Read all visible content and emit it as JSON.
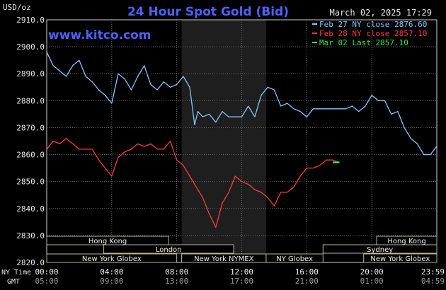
{
  "header": {
    "title": "24 Hour Spot Gold (Bid)",
    "timestamp": "March 02, 2025 17:29",
    "unit": "USD/oz",
    "watermark": "www.kitco.com"
  },
  "legend": [
    {
      "label": "Feb 27 NY close 2876.60",
      "color": "#7ec8ff"
    },
    {
      "label": "Feb 28 NY close 2857.10",
      "color": "#ff3b3b"
    },
    {
      "label": "Mar 02 Last 2857.10",
      "color": "#33ee33"
    }
  ],
  "sessions": {
    "row1": [
      {
        "name": "Hong Kong",
        "start": 0,
        "end": 7.5
      },
      {
        "name": "Hong Kong",
        "start": 20.3,
        "end": 24
      }
    ],
    "row2": [
      {
        "name": "London",
        "start": 3.5,
        "end": 11.5
      },
      {
        "name": "Sydney",
        "start": 17.0,
        "end": 24
      }
    ],
    "row3": [
      {
        "name": "New York Globex",
        "start": 0,
        "end": 8.0
      },
      {
        "name": "New York NYMEX",
        "start": 8.3,
        "end": 13.5
      },
      {
        "name": "NY Globex",
        "start": 13.5,
        "end": 17.0
      },
      {
        "name": "New York Globex",
        "start": 19.5,
        "end": 24
      }
    ]
  },
  "time_rows": {
    "ny_label": "NY Time",
    "gmt_label": "GMT",
    "ny": [
      "00:00",
      "04:00",
      "08:00",
      "12:00",
      "16:00",
      "20:00",
      "23:59"
    ],
    "gmt": [
      "05:00",
      "09:00",
      "13:00",
      "17:00",
      "21:00",
      "01:00",
      "04:59"
    ]
  },
  "chart_data": {
    "type": "line",
    "title": "24 Hour Spot Gold (Bid)",
    "ylabel": "USD/oz",
    "xlabel": "NY Time",
    "ylim": [
      2820,
      2910
    ],
    "xlim": [
      0,
      24
    ],
    "y_ticks": [
      "2820.0",
      "2830.0",
      "2840.0",
      "2850.0",
      "2860.0",
      "2870.0",
      "2880.0",
      "2890.0",
      "2900.0",
      "2910.0"
    ],
    "grid": true,
    "shaded_region": [
      8.3,
      13.5
    ],
    "series": [
      {
        "name": "Feb 27 NY close 2876.60",
        "color": "#7ec8ff",
        "x": [
          0.0,
          0.4,
          0.8,
          1.2,
          1.6,
          2.0,
          2.4,
          2.8,
          3.2,
          3.6,
          4.0,
          4.4,
          4.8,
          5.2,
          5.6,
          6.0,
          6.4,
          6.8,
          7.2,
          7.6,
          8.0,
          8.4,
          8.8,
          9.1,
          9.3,
          9.6,
          10.0,
          10.4,
          10.8,
          11.2,
          11.6,
          12.0,
          12.4,
          12.8,
          13.2,
          13.6,
          14.0,
          14.4,
          14.8,
          15.2,
          15.6,
          16.0,
          16.4,
          16.8,
          17.2,
          17.6,
          18.0,
          18.4,
          18.8,
          19.2,
          19.6,
          20.0,
          20.4,
          20.8,
          21.2,
          21.6,
          22.0,
          22.4,
          22.8,
          23.2,
          23.6,
          23.99
        ],
        "y": [
          2898,
          2893,
          2891,
          2889,
          2893,
          2895,
          2889,
          2887,
          2884,
          2882,
          2879,
          2890,
          2888,
          2884,
          2889,
          2893,
          2886,
          2884,
          2887,
          2885,
          2886,
          2889,
          2885,
          2871,
          2876,
          2874,
          2875,
          2872,
          2876,
          2874,
          2874,
          2874,
          2878,
          2874,
          2882,
          2885,
          2884,
          2878,
          2879,
          2877,
          2876,
          2874,
          2877,
          2877,
          2877,
          2877,
          2877,
          2877,
          2878,
          2876,
          2878,
          2882,
          2880,
          2880,
          2875,
          2876,
          2870,
          2866,
          2864,
          2860,
          2860,
          2863
        ]
      },
      {
        "name": "Feb 28 NY close 2857.10",
        "color": "#ff3b3b",
        "x": [
          0.0,
          0.4,
          0.8,
          1.2,
          1.6,
          2.0,
          2.4,
          2.8,
          3.2,
          3.6,
          4.0,
          4.4,
          4.8,
          5.2,
          5.6,
          6.0,
          6.4,
          6.8,
          7.2,
          7.6,
          8.0,
          8.4,
          8.8,
          9.2,
          9.6,
          10.0,
          10.4,
          10.8,
          11.2,
          11.6,
          12.0,
          12.4,
          12.8,
          13.2,
          13.6,
          14.0,
          14.4,
          14.8,
          15.2,
          15.6,
          16.0,
          16.4,
          16.8,
          17.2,
          17.6,
          18.0
        ],
        "y": [
          2862,
          2865,
          2864,
          2866,
          2864,
          2862,
          2862,
          2862,
          2858,
          2855,
          2852,
          2859,
          2861,
          2862,
          2864,
          2863,
          2864,
          2862,
          2862,
          2865,
          2858,
          2856,
          2852,
          2848,
          2844,
          2838,
          2833,
          2842,
          2846,
          2852,
          2850,
          2849,
          2847,
          2846,
          2844,
          2841,
          2846,
          2846,
          2848,
          2852,
          2855,
          2855,
          2856,
          2858,
          2858,
          2857
        ]
      },
      {
        "name": "Mar 02 Last 2857.10",
        "color": "#33ee33",
        "x": [
          17.6,
          18.0
        ],
        "y": [
          2857.1,
          2857.1
        ]
      }
    ]
  }
}
